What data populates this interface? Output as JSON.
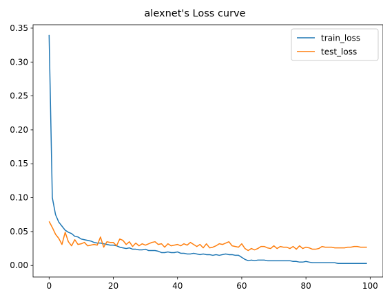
{
  "chart_data": {
    "type": "line",
    "title": "alexnet's Loss curve",
    "xlabel": "",
    "ylabel": "",
    "xlim": [
      -5,
      104
    ],
    "ylim": [
      -0.017,
      0.355
    ],
    "xticks": [
      0,
      20,
      40,
      60,
      80,
      100
    ],
    "xtick_labels": [
      "0",
      "20",
      "40",
      "60",
      "80",
      "100"
    ],
    "yticks": [
      0.0,
      0.05,
      0.1,
      0.15,
      0.2,
      0.25,
      0.3,
      0.35
    ],
    "ytick_labels": [
      "0.00",
      "0.05",
      "0.10",
      "0.15",
      "0.20",
      "0.25",
      "0.30",
      "0.35"
    ],
    "grid": false,
    "legend_position": "top-right",
    "x": [
      0,
      1,
      2,
      3,
      4,
      5,
      6,
      7,
      8,
      9,
      10,
      11,
      12,
      13,
      14,
      15,
      16,
      17,
      18,
      19,
      20,
      21,
      22,
      23,
      24,
      25,
      26,
      27,
      28,
      29,
      30,
      31,
      32,
      33,
      34,
      35,
      36,
      37,
      38,
      39,
      40,
      41,
      42,
      43,
      44,
      45,
      46,
      47,
      48,
      49,
      50,
      51,
      52,
      53,
      54,
      55,
      56,
      57,
      58,
      59,
      60,
      61,
      62,
      63,
      64,
      65,
      66,
      67,
      68,
      69,
      70,
      71,
      72,
      73,
      74,
      75,
      76,
      77,
      78,
      79,
      80,
      81,
      82,
      83,
      84,
      85,
      86,
      87,
      88,
      89,
      90,
      91,
      92,
      93,
      94,
      95,
      96,
      97,
      98,
      99
    ],
    "series": [
      {
        "name": "train_loss",
        "color": "#1f77b4",
        "values": [
          0.34,
          0.1,
          0.075,
          0.064,
          0.058,
          0.052,
          0.049,
          0.047,
          0.043,
          0.042,
          0.039,
          0.038,
          0.037,
          0.036,
          0.034,
          0.033,
          0.033,
          0.032,
          0.031,
          0.03,
          0.03,
          0.029,
          0.027,
          0.026,
          0.025,
          0.026,
          0.024,
          0.024,
          0.023,
          0.023,
          0.024,
          0.022,
          0.022,
          0.022,
          0.021,
          0.019,
          0.019,
          0.02,
          0.019,
          0.019,
          0.02,
          0.018,
          0.018,
          0.017,
          0.017,
          0.018,
          0.017,
          0.016,
          0.017,
          0.016,
          0.016,
          0.015,
          0.016,
          0.015,
          0.016,
          0.017,
          0.016,
          0.016,
          0.015,
          0.015,
          0.012,
          0.009,
          0.007,
          0.008,
          0.007,
          0.008,
          0.008,
          0.008,
          0.007,
          0.007,
          0.007,
          0.007,
          0.007,
          0.007,
          0.007,
          0.007,
          0.006,
          0.006,
          0.005,
          0.005,
          0.006,
          0.005,
          0.004,
          0.004,
          0.004,
          0.004,
          0.004,
          0.004,
          0.004,
          0.004,
          0.003,
          0.003,
          0.003,
          0.003,
          0.003,
          0.003,
          0.003,
          0.003,
          0.003,
          0.003
        ]
      },
      {
        "name": "test_loss",
        "color": "#ff7f0e",
        "values": [
          0.065,
          0.056,
          0.046,
          0.04,
          0.031,
          0.049,
          0.035,
          0.029,
          0.038,
          0.031,
          0.032,
          0.034,
          0.029,
          0.03,
          0.031,
          0.03,
          0.042,
          0.027,
          0.035,
          0.034,
          0.034,
          0.029,
          0.039,
          0.037,
          0.031,
          0.035,
          0.028,
          0.033,
          0.029,
          0.032,
          0.03,
          0.032,
          0.034,
          0.035,
          0.031,
          0.032,
          0.027,
          0.032,
          0.029,
          0.03,
          0.031,
          0.029,
          0.032,
          0.03,
          0.034,
          0.031,
          0.028,
          0.031,
          0.026,
          0.032,
          0.026,
          0.027,
          0.029,
          0.032,
          0.031,
          0.033,
          0.035,
          0.029,
          0.028,
          0.027,
          0.032,
          0.025,
          0.022,
          0.025,
          0.023,
          0.025,
          0.028,
          0.028,
          0.026,
          0.025,
          0.029,
          0.025,
          0.028,
          0.027,
          0.027,
          0.025,
          0.028,
          0.024,
          0.029,
          0.025,
          0.027,
          0.026,
          0.024,
          0.024,
          0.025,
          0.028,
          0.027,
          0.027,
          0.027,
          0.026,
          0.026,
          0.026,
          0.026,
          0.027,
          0.027,
          0.028,
          0.028,
          0.027,
          0.027,
          0.027
        ]
      }
    ]
  }
}
